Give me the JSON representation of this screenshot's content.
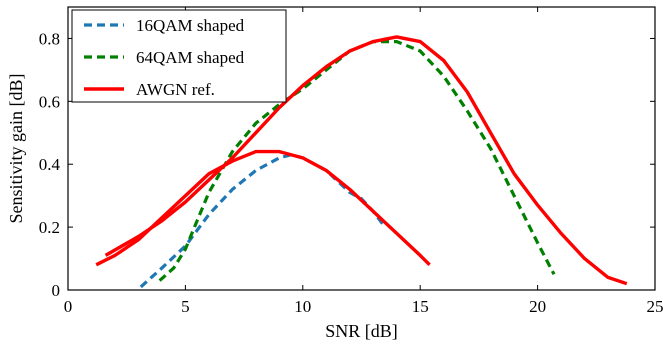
{
  "chart_data": {
    "type": "line",
    "title": "",
    "xlabel": "SNR [dB]",
    "ylabel": "Sensitivity gain [dB]",
    "xlim": [
      0,
      25
    ],
    "ylim": [
      0,
      0.9
    ],
    "xticks": [
      0,
      5,
      10,
      15,
      20,
      25
    ],
    "yticks": [
      0,
      0.2,
      0.4,
      0.6,
      0.8
    ],
    "xtick_labels": [
      "0",
      "5",
      "10",
      "15",
      "20",
      "25"
    ],
    "ytick_labels": [
      "0",
      "0.2",
      "0.4",
      "0.6",
      "0.8"
    ],
    "grid": false,
    "legend_position": "top-left",
    "series": [
      {
        "name": "16QAM shaped",
        "color": "#1f77b4",
        "style": "dashed",
        "points": [
          [
            3.1,
            0.01
          ],
          [
            4.0,
            0.07
          ],
          [
            5.0,
            0.14
          ],
          [
            6.0,
            0.24
          ],
          [
            7.0,
            0.32
          ],
          [
            8.0,
            0.38
          ],
          [
            9.0,
            0.42
          ],
          [
            9.5,
            0.43
          ],
          [
            10.0,
            0.42
          ],
          [
            11.0,
            0.38
          ],
          [
            12.0,
            0.31
          ],
          [
            12.5,
            0.29
          ],
          [
            13.0,
            0.25
          ],
          [
            13.5,
            0.2
          ]
        ]
      },
      {
        "name": "64QAM shaped",
        "color": "#008000",
        "style": "dashed",
        "points": [
          [
            3.9,
            0.03
          ],
          [
            4.5,
            0.07
          ],
          [
            5.0,
            0.13
          ],
          [
            5.5,
            0.22
          ],
          [
            6.0,
            0.31
          ],
          [
            7.0,
            0.44
          ],
          [
            8.0,
            0.53
          ],
          [
            9.0,
            0.59
          ],
          [
            10.0,
            0.64
          ],
          [
            11.0,
            0.7
          ],
          [
            12.0,
            0.76
          ],
          [
            13.0,
            0.79
          ],
          [
            14.0,
            0.79
          ],
          [
            15.0,
            0.76
          ],
          [
            16.0,
            0.68
          ],
          [
            17.0,
            0.57
          ],
          [
            18.0,
            0.45
          ],
          [
            19.0,
            0.3
          ],
          [
            20.0,
            0.15
          ],
          [
            20.7,
            0.05
          ]
        ]
      },
      {
        "name": "AWGN ref.",
        "color": "#ff0000",
        "style": "solid",
        "points": [
          [
            1.2,
            0.08
          ],
          [
            2.0,
            0.11
          ],
          [
            3.0,
            0.16
          ],
          [
            4.0,
            0.23
          ],
          [
            5.0,
            0.3
          ],
          [
            6.0,
            0.37
          ],
          [
            7.0,
            0.41
          ],
          [
            8.0,
            0.44
          ],
          [
            9.0,
            0.44
          ],
          [
            10.0,
            0.42
          ],
          [
            11.0,
            0.38
          ],
          [
            12.0,
            0.32
          ],
          [
            13.0,
            0.25
          ],
          [
            14.0,
            0.18
          ],
          [
            15.0,
            0.11
          ],
          [
            15.4,
            0.08
          ]
        ]
      },
      {
        "name": "",
        "color": "#ff0000",
        "style": "solid",
        "points": [
          [
            1.6,
            0.11
          ],
          [
            3.0,
            0.17
          ],
          [
            4.0,
            0.22
          ],
          [
            5.0,
            0.28
          ],
          [
            6.0,
            0.35
          ],
          [
            7.0,
            0.42
          ],
          [
            8.0,
            0.5
          ],
          [
            9.0,
            0.58
          ],
          [
            10.0,
            0.65
          ],
          [
            11.0,
            0.71
          ],
          [
            12.0,
            0.76
          ],
          [
            13.0,
            0.79
          ],
          [
            14.0,
            0.805
          ],
          [
            15.0,
            0.79
          ],
          [
            16.0,
            0.73
          ],
          [
            17.0,
            0.63
          ],
          [
            18.0,
            0.5
          ],
          [
            19.0,
            0.37
          ],
          [
            20.0,
            0.27
          ],
          [
            21.0,
            0.18
          ],
          [
            22.0,
            0.1
          ],
          [
            23.0,
            0.04
          ],
          [
            23.8,
            0.02
          ]
        ]
      }
    ]
  }
}
